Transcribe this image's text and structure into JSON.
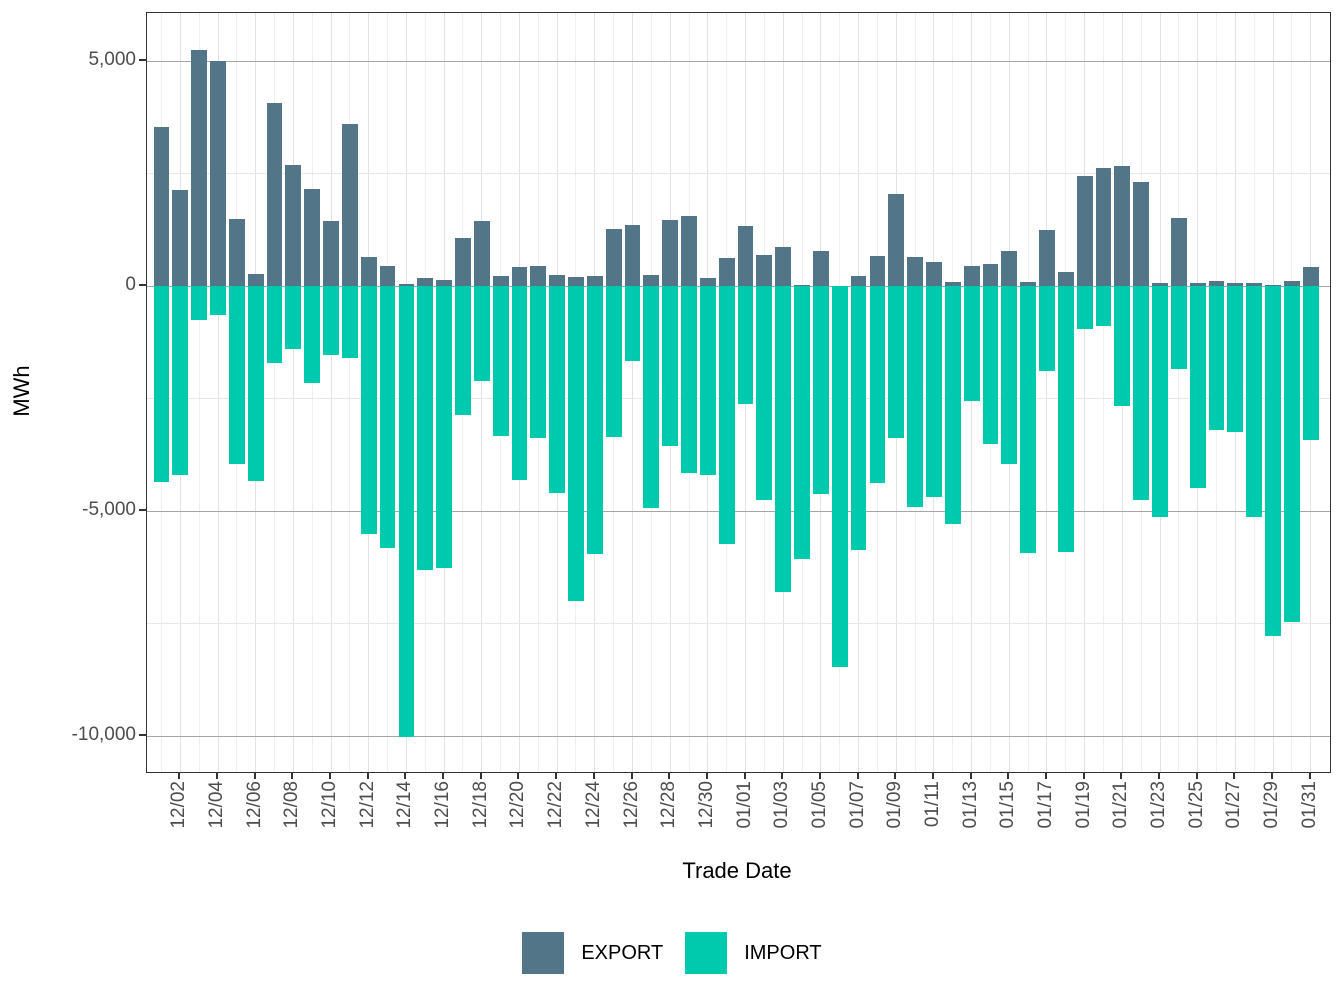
{
  "chart_data": {
    "type": "bar",
    "title": "",
    "xlabel": "Trade Date",
    "ylabel": "MWh",
    "legend_position": "bottom",
    "grid": true,
    "ylim": [
      -10800,
      6050
    ],
    "yticks": [
      5000,
      0,
      -5000,
      -10000
    ],
    "ytick_labels": [
      "5,000",
      "0",
      "-5,000",
      "-10,000"
    ],
    "y_minor_ticks": [
      2500,
      -2500,
      -7500
    ],
    "x_tick_labels": [
      "12/02",
      "12/04",
      "12/06",
      "12/08",
      "12/10",
      "12/12",
      "12/14",
      "12/16",
      "12/18",
      "12/20",
      "12/22",
      "12/24",
      "12/26",
      "12/28",
      "12/30",
      "01/01",
      "01/03",
      "01/05",
      "01/07",
      "01/09",
      "01/11",
      "01/13",
      "01/15",
      "01/17",
      "01/19",
      "01/21",
      "01/23",
      "01/25",
      "01/27",
      "01/29",
      "01/31"
    ],
    "categories": [
      "12/01",
      "12/02",
      "12/03",
      "12/04",
      "12/05",
      "12/06",
      "12/07",
      "12/08",
      "12/09",
      "12/10",
      "12/11",
      "12/12",
      "12/13",
      "12/14",
      "12/15",
      "12/16",
      "12/17",
      "12/18",
      "12/19",
      "12/20",
      "12/21",
      "12/22",
      "12/23",
      "12/24",
      "12/25",
      "12/26",
      "12/27",
      "12/28",
      "12/29",
      "12/30",
      "12/31",
      "01/01",
      "01/02",
      "01/03",
      "01/04",
      "01/05",
      "01/06",
      "01/07",
      "01/08",
      "01/09",
      "01/10",
      "01/11",
      "01/12",
      "01/13",
      "01/14",
      "01/15",
      "01/16",
      "01/17",
      "01/18",
      "01/19",
      "01/20",
      "01/21",
      "01/22",
      "01/23",
      "01/24",
      "01/25",
      "01/26",
      "01/27",
      "01/28",
      "01/29",
      "01/30",
      "01/31"
    ],
    "series": [
      {
        "name": "EXPORT",
        "values": [
          3530,
          2130,
          5240,
          5000,
          1490,
          260,
          4060,
          2700,
          2160,
          1440,
          3590,
          650,
          440,
          50,
          180,
          130,
          1060,
          1440,
          215,
          420,
          440,
          240,
          210,
          220,
          1260,
          1350,
          240,
          1470,
          1550,
          180,
          620,
          1330,
          700,
          870,
          30,
          780,
          10,
          220,
          670,
          2040,
          640,
          530,
          90,
          440,
          500,
          780,
          90,
          1240,
          310,
          2450,
          2630,
          2660,
          2310,
          75,
          1510,
          70,
          110,
          70,
          75,
          20,
          110,
          420
        ]
      },
      {
        "name": "IMPORT",
        "values": [
          -4350,
          -4190,
          -760,
          -640,
          -3950,
          -4330,
          -1720,
          -1390,
          -2160,
          -1540,
          -1590,
          -5520,
          -5820,
          -10020,
          -6300,
          -6260,
          -2870,
          -2100,
          -3330,
          -4300,
          -3370,
          -4610,
          -7000,
          -5960,
          -3350,
          -1670,
          -4930,
          -3560,
          -4150,
          -4200,
          -5730,
          -2630,
          -4760,
          -6790,
          -6070,
          -4630,
          -8470,
          -5870,
          -4370,
          -3370,
          -4910,
          -4690,
          -5280,
          -2560,
          -3500,
          -3950,
          -5930,
          -1890,
          -5910,
          -960,
          -890,
          -2670,
          -4760,
          -5130,
          -1840,
          -4480,
          -3210,
          -3240,
          -5130,
          -7780,
          -7460,
          -3430
        ]
      }
    ],
    "colors": {
      "export": "#527687",
      "import": "#00CAAE"
    },
    "grid_colors": {
      "y_major": "#a6a6a6",
      "y_minor": "#e8e8e8",
      "x_major": "#e2e2e2",
      "x_minor": "#efefef"
    }
  },
  "legend": {
    "export_label": "EXPORT",
    "import_label": "IMPORT"
  },
  "axis_titles": {
    "y": "MWh",
    "x": "Trade Date"
  }
}
